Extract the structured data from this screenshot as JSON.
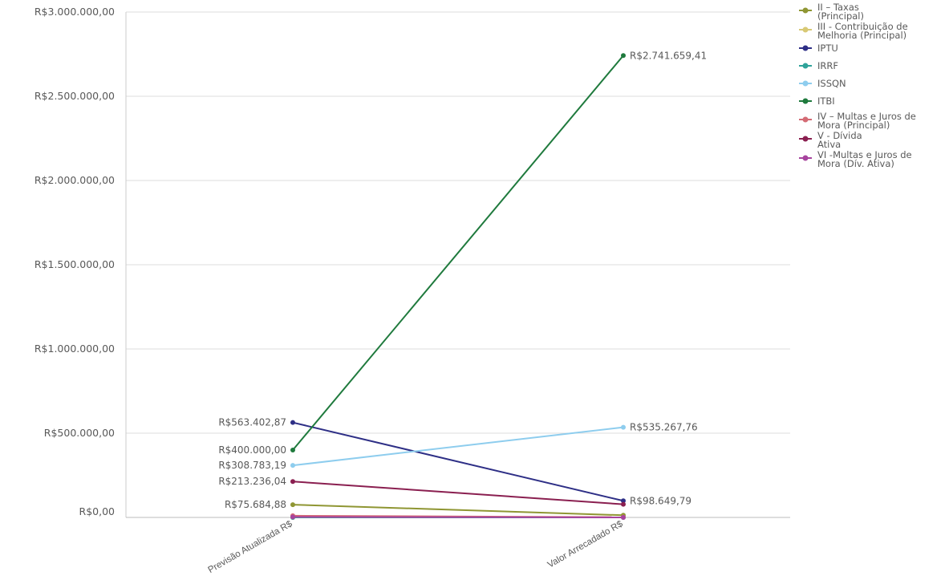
{
  "chart_data": {
    "type": "line",
    "title": "",
    "xlabel": "",
    "ylabel": "",
    "categories": [
      "Previsão Atualizada R$",
      "Valor Arrecadado R$"
    ],
    "ylim": [
      0,
      3000000
    ],
    "y_ticks": [
      0,
      500000,
      1000000,
      1500000,
      2000000,
      2500000,
      3000000
    ],
    "y_tick_labels": [
      "R$0,00",
      "R$500.000,00",
      "R$1.000.000,00",
      "R$1.500.000,00",
      "R$2.000.000,00",
      "R$2.500.000,00",
      "R$3.000.000,00"
    ],
    "grid": true,
    "legend_position": "top-right",
    "series": [
      {
        "name": "II – Taxas (Principal)",
        "legend_lines": [
          "II – Taxas",
          "(Principal)"
        ],
        "color": "#8f9633",
        "values": [
          75684.88,
          13000
        ],
        "labels": [
          "R$75.684,88",
          ""
        ]
      },
      {
        "name": "III - Contribuição de Melhoria (Principal)",
        "legend_lines": [
          "III - Contribuição de",
          "Melhoria (Principal)"
        ],
        "color": "#d8c975",
        "values": [
          0,
          0
        ],
        "labels": [
          "",
          ""
        ]
      },
      {
        "name": "IPTU",
        "legend_lines": [
          "IPTU"
        ],
        "color": "#2e2f86",
        "values": [
          563402.87,
          98649.79
        ],
        "labels": [
          "R$563.402,87",
          "R$98.649,79"
        ]
      },
      {
        "name": "IRRF",
        "legend_lines": [
          "IRRF"
        ],
        "color": "#2fa39a",
        "values": [
          0,
          0
        ],
        "labels": [
          "",
          ""
        ]
      },
      {
        "name": "ISSQN",
        "legend_lines": [
          "ISSQN"
        ],
        "color": "#8ecdee",
        "values": [
          308783.19,
          535267.76
        ],
        "labels": [
          "R$308.783,19",
          "R$535.267,76"
        ]
      },
      {
        "name": "ITBI",
        "legend_lines": [
          "ITBI"
        ],
        "color": "#1f7a3d",
        "values": [
          400000.0,
          2741659.41
        ],
        "labels": [
          "R$400.000,00",
          "R$2.741.659,41"
        ]
      },
      {
        "name": "IV – Multas e Juros de Mora (Principal)",
        "legend_lines": [
          "IV – Multas e Juros de",
          "Mora (Principal)"
        ],
        "color": "#d46b74",
        "values": [
          10000,
          1500
        ],
        "labels": [
          "",
          ""
        ]
      },
      {
        "name": "V - Dívida Ativa",
        "legend_lines": [
          "V - Dívida",
          "Ativa"
        ],
        "color": "#8a1f50",
        "values": [
          213236.04,
          78000
        ],
        "labels": [
          "R$213.236,04",
          ""
        ]
      },
      {
        "name": "VI -Multas e Juros de Mora (Dív. Ativa)",
        "legend_lines": [
          "VI -Multas e Juros de",
          "Mora (Dív. Ativa)"
        ],
        "color": "#a7449e",
        "values": [
          3000,
          0
        ],
        "labels": [
          "",
          ""
        ]
      }
    ]
  }
}
